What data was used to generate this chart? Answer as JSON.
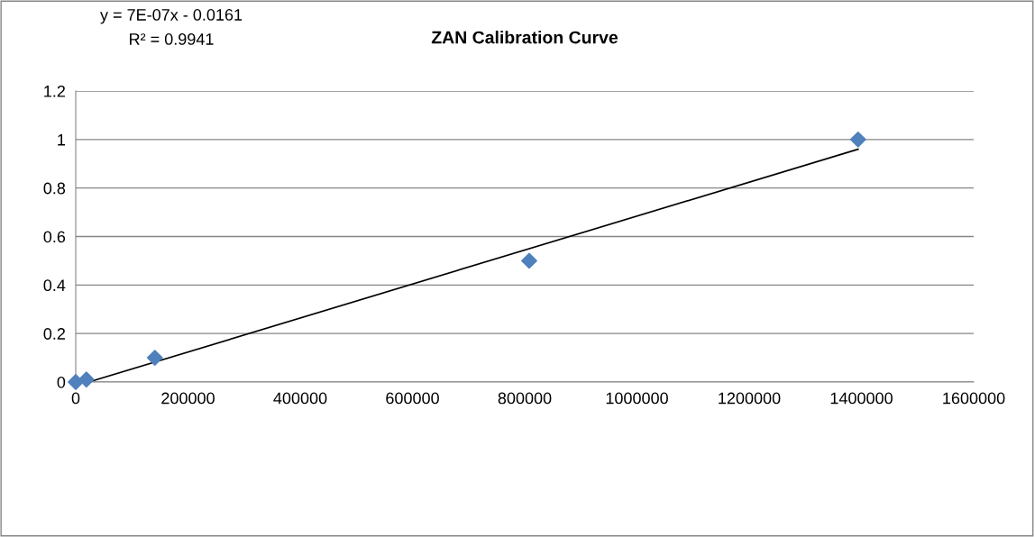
{
  "chart_data": {
    "type": "scatter",
    "title": "ZAN Calibration Curve",
    "x": [
      0,
      19000,
      141000,
      808000,
      1394000
    ],
    "series": [
      {
        "color": "#4f81bd",
        "marker": "diamond",
        "values": [
          0,
          0.01,
          0.1,
          0.5,
          1
        ]
      },
      {
        "type": "line",
        "color": "#000000",
        "marker": "none",
        "line_style": "solid",
        "x": [
          23000,
          1394000
        ],
        "values": [
          0,
          0.96
        ]
      }
    ],
    "xlim": [
      0,
      1600000
    ],
    "xticks": [
      0,
      200000,
      400000,
      600000,
      800000,
      1000000,
      1200000,
      1400000,
      1600000
    ],
    "ylim": [
      0,
      1.2
    ],
    "yticks": [
      0,
      0.2,
      0.4,
      0.6,
      0.8,
      1,
      1.2
    ],
    "grid": "y",
    "legend": false,
    "annotations": [
      "y = 7E-07x - 0.0161",
      "R² = 0.9941"
    ]
  }
}
